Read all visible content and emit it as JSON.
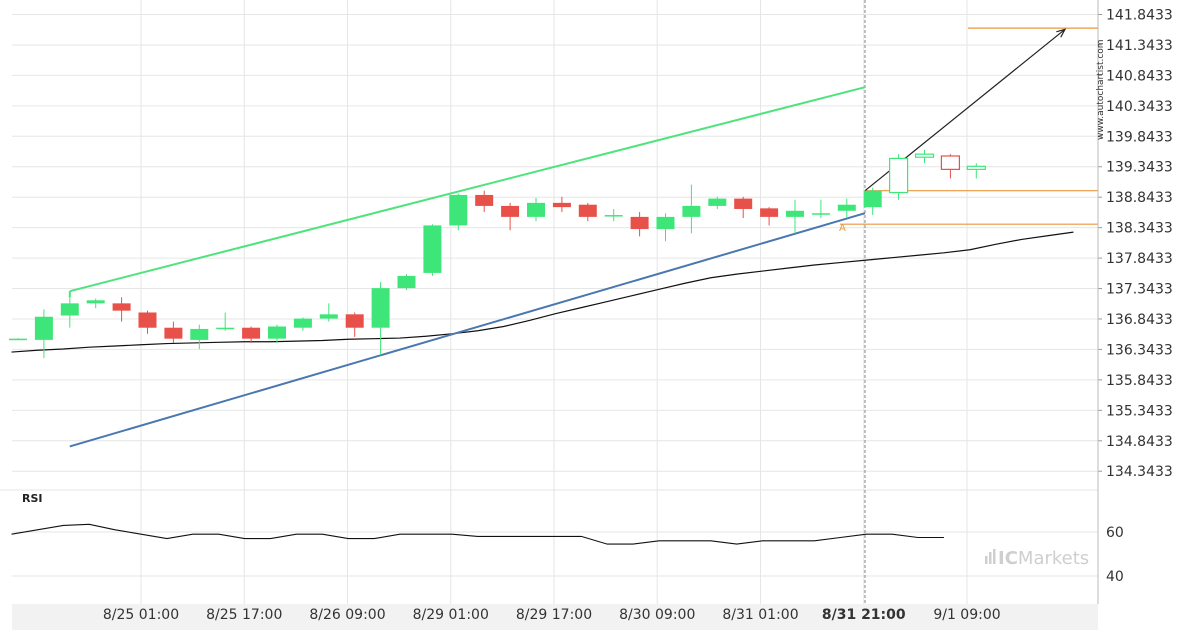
{
  "chart_data": [
    {
      "type": "candlestick",
      "x_labels": [
        "8/25 01:00",
        "8/25 17:00",
        "8/26 09:00",
        "8/29 01:00",
        "8/29 17:00",
        "8/30 09:00",
        "8/31 01:00",
        "8/31 21:00",
        "9/1 09:00"
      ],
      "highlighted_x_label": "8/31 21:00",
      "y_ticks": [
        "141.8433",
        "141.3433",
        "140.8433",
        "140.3433",
        "139.8433",
        "139.3433",
        "138.8433",
        "138.3433",
        "137.8433",
        "137.3433",
        "136.8433",
        "136.3433",
        "135.8433",
        "135.3433",
        "134.8433",
        "134.3433"
      ],
      "y_range": [
        134.15,
        141.95
      ],
      "grid": true,
      "candles": [
        {
          "o": 136.52,
          "h": 136.53,
          "l": 136.5,
          "c": 136.52
        },
        {
          "o": 136.5,
          "h": 137.0,
          "l": 136.2,
          "c": 136.88
        },
        {
          "o": 136.9,
          "h": 137.25,
          "l": 136.7,
          "c": 137.1
        },
        {
          "o": 137.1,
          "h": 137.18,
          "l": 137.02,
          "c": 137.15
        },
        {
          "o": 137.1,
          "h": 137.2,
          "l": 136.8,
          "c": 136.98
        },
        {
          "o": 136.95,
          "h": 136.98,
          "l": 136.6,
          "c": 136.7
        },
        {
          "o": 136.7,
          "h": 136.8,
          "l": 136.45,
          "c": 136.52
        },
        {
          "o": 136.5,
          "h": 136.75,
          "l": 136.35,
          "c": 136.68
        },
        {
          "o": 136.68,
          "h": 136.95,
          "l": 136.65,
          "c": 136.7
        },
        {
          "o": 136.7,
          "h": 136.72,
          "l": 136.45,
          "c": 136.52
        },
        {
          "o": 136.52,
          "h": 136.75,
          "l": 136.45,
          "c": 136.72
        },
        {
          "o": 136.7,
          "h": 136.87,
          "l": 136.65,
          "c": 136.85
        },
        {
          "o": 136.85,
          "h": 137.1,
          "l": 136.8,
          "c": 136.92
        },
        {
          "o": 136.92,
          "h": 136.95,
          "l": 136.55,
          "c": 136.7
        },
        {
          "o": 136.7,
          "h": 137.45,
          "l": 136.25,
          "c": 137.35
        },
        {
          "o": 137.35,
          "h": 137.58,
          "l": 137.32,
          "c": 137.55
        },
        {
          "o": 137.6,
          "h": 138.4,
          "l": 137.55,
          "c": 138.38
        },
        {
          "o": 138.38,
          "h": 138.9,
          "l": 138.3,
          "c": 138.88
        },
        {
          "o": 138.88,
          "h": 138.95,
          "l": 138.6,
          "c": 138.7
        },
        {
          "o": 138.7,
          "h": 138.75,
          "l": 138.3,
          "c": 138.52
        },
        {
          "o": 138.52,
          "h": 138.83,
          "l": 138.45,
          "c": 138.75
        },
        {
          "o": 138.75,
          "h": 138.85,
          "l": 138.6,
          "c": 138.68
        },
        {
          "o": 138.72,
          "h": 138.75,
          "l": 138.45,
          "c": 138.52
        },
        {
          "o": 138.55,
          "h": 138.65,
          "l": 138.45,
          "c": 138.55
        },
        {
          "o": 138.52,
          "h": 138.6,
          "l": 138.2,
          "c": 138.32
        },
        {
          "o": 138.32,
          "h": 138.58,
          "l": 138.12,
          "c": 138.52
        },
        {
          "o": 138.52,
          "h": 139.05,
          "l": 138.25,
          "c": 138.7
        },
        {
          "o": 138.7,
          "h": 138.85,
          "l": 138.65,
          "c": 138.82
        },
        {
          "o": 138.82,
          "h": 138.85,
          "l": 138.5,
          "c": 138.65
        },
        {
          "o": 138.66,
          "h": 138.68,
          "l": 138.38,
          "c": 138.52
        },
        {
          "o": 138.52,
          "h": 138.8,
          "l": 138.25,
          "c": 138.62
        },
        {
          "o": 138.58,
          "h": 138.8,
          "l": 138.5,
          "c": 138.58
        },
        {
          "o": 138.62,
          "h": 138.82,
          "l": 138.5,
          "c": 138.72
        },
        {
          "o": 138.68,
          "h": 139.0,
          "l": 138.55,
          "c": 138.95
        },
        {
          "o": 138.92,
          "h": 139.55,
          "l": 138.8,
          "c": 139.48,
          "projected": true
        },
        {
          "o": 139.5,
          "h": 139.62,
          "l": 139.4,
          "c": 139.55,
          "projected": true
        },
        {
          "o": 139.52,
          "h": 139.55,
          "l": 139.15,
          "c": 139.3,
          "projected": true
        },
        {
          "o": 139.3,
          "h": 139.4,
          "l": 139.15,
          "c": 139.35,
          "projected": true
        }
      ],
      "moving_average": [
        136.3,
        136.33,
        136.35,
        136.38,
        136.4,
        136.42,
        136.44,
        136.45,
        136.46,
        136.47,
        136.47,
        136.48,
        136.49,
        136.51,
        136.52,
        136.53,
        136.56,
        136.6,
        136.65,
        136.72,
        136.82,
        136.93,
        137.03,
        137.13,
        137.23,
        137.33,
        137.43,
        137.52,
        137.58,
        137.63,
        137.68,
        137.73,
        137.77,
        137.81,
        137.85,
        137.89,
        137.93,
        137.98,
        138.07,
        138.15,
        138.21,
        138.27
      ],
      "pattern": {
        "upper_line": {
          "from": 137.3,
          "to": 140.65
        },
        "lower_line": {
          "from": 134.75,
          "to": 138.58
        },
        "breakout_arrow": {
          "from": 138.95,
          "to": 141.6
        },
        "level_lines": [
          141.62,
          138.95,
          138.4
        ],
        "marker_label": "A"
      },
      "watermark": "www.autochartist.com"
    },
    {
      "type": "line",
      "title": "RSI",
      "y_ticks": [
        "60",
        "40"
      ],
      "y_range": [
        30,
        70
      ],
      "values": [
        59,
        61,
        63,
        63.5,
        61,
        59,
        57,
        59,
        59,
        57,
        57,
        59,
        59,
        57,
        57,
        59,
        59,
        59,
        58,
        58,
        58,
        58,
        58,
        54.5,
        54.5,
        56,
        56,
        56,
        54.5,
        56,
        56,
        56,
        57.5,
        59,
        59,
        57.5,
        57.5
      ]
    }
  ],
  "brand": {
    "logo_text_ic": "IC",
    "logo_text_markets": "Markets"
  },
  "colors": {
    "bull": "#3ee67a",
    "bear": "#e8504a",
    "upper_trend": "#4fe37d",
    "lower_trend": "#4a77b0",
    "level": "#e8973f",
    "grid": "#e6e6e6",
    "axis_text": "#333333"
  }
}
